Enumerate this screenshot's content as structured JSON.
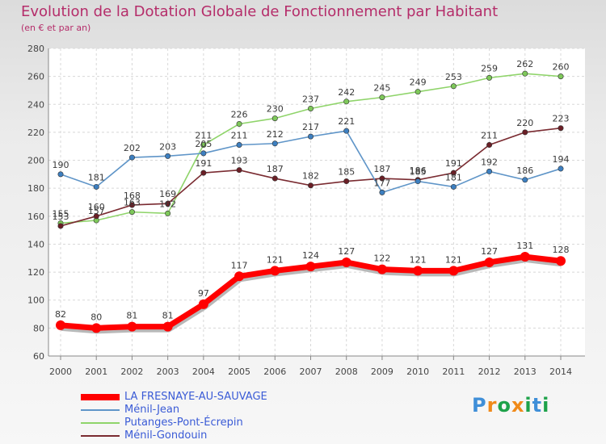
{
  "header": {
    "title": "Evolution de la Dotation Globale de Fonctionnement par Habitant",
    "subtitle": "(en € et par an)"
  },
  "logo": {
    "text": "Proxiti",
    "letters": [
      "P",
      "r",
      "o",
      "x",
      "i",
      "t",
      "i"
    ],
    "colors": [
      "#3f8fd8",
      "#f08a1a",
      "#1ea24a",
      "#f08a1a",
      "#1ea24a",
      "#3f8fd8",
      "#1ea24a"
    ]
  },
  "chart_data": {
    "type": "line",
    "title": "Evolution de la Dotation Globale de Fonctionnement par Habitant",
    "subtitle": "(en € et par an)",
    "xlabel": "",
    "ylabel": "",
    "ylim": [
      60,
      280
    ],
    "yticks": [
      60,
      80,
      100,
      120,
      140,
      160,
      180,
      200,
      220,
      240,
      260,
      280
    ],
    "grid": true,
    "legend_position": "bottom-left",
    "categories": [
      "2000",
      "2001",
      "2002",
      "2003",
      "2004",
      "2005",
      "2006",
      "2007",
      "2008",
      "2009",
      "2010",
      "2011",
      "2012",
      "2013",
      "2014"
    ],
    "series": [
      {
        "name": "Putanges-Pont-Écrepin",
        "color": "#8fd46a",
        "dot": "#7ec85a",
        "values": [
          155,
          157,
          163,
          162,
          211,
          226,
          230,
          237,
          242,
          245,
          249,
          253,
          259,
          262,
          260
        ],
        "labels": [
          "155",
          "157",
          "163",
          "162",
          "211",
          "226",
          "230",
          "237",
          "242",
          "245",
          "249",
          "253",
          "259",
          "262",
          "260"
        ]
      },
      {
        "name": "Ménil-Gondouin",
        "color": "#7a2b31",
        "dot": "#6b1f26",
        "values": [
          153,
          160,
          168,
          169,
          191,
          193,
          187,
          182,
          185,
          187,
          186,
          191,
          211,
          220,
          223
        ],
        "labels": [
          "153",
          "160",
          "168",
          "169",
          "191",
          "193",
          "187",
          "182",
          "185",
          "187",
          "186",
          "191",
          "211",
          "220",
          "223"
        ]
      },
      {
        "name": "Ménil-Jean",
        "color": "#5f95c8",
        "dot": "#3d7fc0",
        "values": [
          190,
          181,
          202,
          203,
          205,
          211,
          212,
          217,
          221,
          177,
          185,
          181,
          192,
          186,
          194
        ],
        "labels": [
          "190",
          "181",
          "202",
          "203",
          "205",
          "211",
          "212",
          "217",
          "221",
          "177",
          "185",
          "181",
          "192",
          "186",
          "194"
        ]
      },
      {
        "name": "LA FRESNAYE-AU-SAUVAGE",
        "color": "#ff0000",
        "dot": "#ff0000",
        "values": [
          82,
          80,
          81,
          81,
          97,
          117,
          121,
          124,
          127,
          122,
          121,
          121,
          127,
          131,
          128
        ],
        "labels": [
          "82",
          "80",
          "81",
          "81",
          "97",
          "117",
          "121",
          "124",
          "127",
          "122",
          "121",
          "121",
          "127",
          "131",
          "128"
        ]
      }
    ],
    "legend": [
      {
        "name": "LA FRESNAYE-AU-SAUVAGE",
        "color": "#ff0000"
      },
      {
        "name": "Ménil-Jean",
        "color": "#5f95c8"
      },
      {
        "name": "Putanges-Pont-Écrepin",
        "color": "#8fd46a"
      },
      {
        "name": "Ménil-Gondouin",
        "color": "#7a2b31"
      }
    ]
  }
}
